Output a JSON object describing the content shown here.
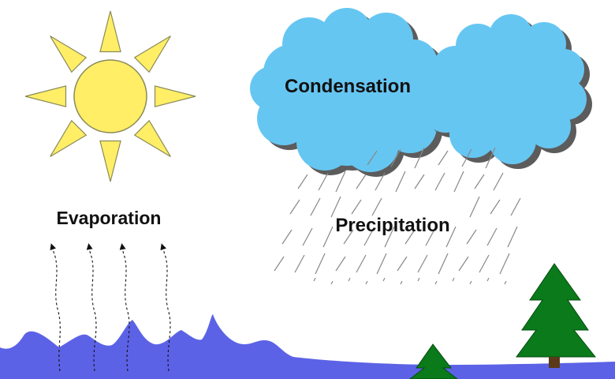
{
  "labels": {
    "evaporation": "Evaporation",
    "condensation": "Condensation",
    "precipitation": "Precipitation"
  },
  "colors": {
    "sun_fill": "#FFEE66",
    "sun_stroke": "#8A8A5A",
    "cloud_fill": "#66C6F2",
    "cloud_shadow": "#5C5C5C",
    "water": "#5C62E6",
    "tree": "#0A7A1A",
    "rain": "#888888"
  },
  "icons": [
    "sun-icon",
    "cloud-icon",
    "tree-icon",
    "rain-streak-icon",
    "vapor-arrow-icon"
  ]
}
